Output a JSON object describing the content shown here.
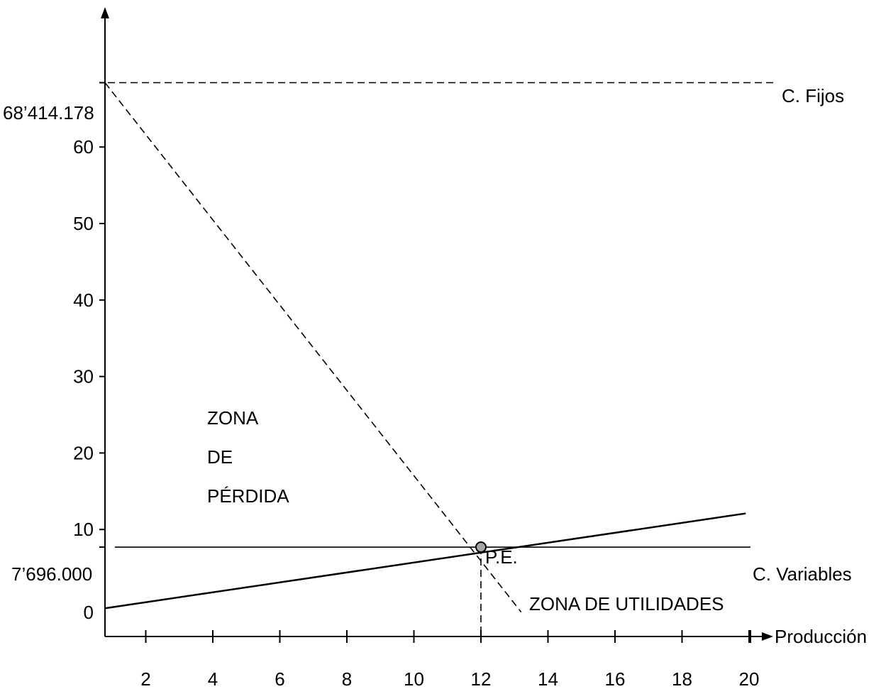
{
  "chart_data": {
    "type": "line",
    "xlabel": "Producción",
    "ylabel": "",
    "x_ticks": [
      "2",
      "4",
      "6",
      "8",
      "10",
      "12",
      "14",
      "16",
      "18",
      "20"
    ],
    "y_ticks": [
      "0",
      "10",
      "20",
      "30",
      "40",
      "50",
      "60"
    ],
    "special_y_labels": {
      "fixed": "68’414.178",
      "variable": "7’696.000"
    },
    "series": [
      {
        "name": "C. Fijos",
        "style": "dashed",
        "x": [
          0,
          20
        ],
        "y": [
          68.414,
          68.414
        ]
      },
      {
        "name": "C. Variables",
        "style": "solid",
        "x": [
          0,
          20
        ],
        "y": [
          7.696,
          7.696
        ]
      },
      {
        "style": "dashed",
        "x": [
          0,
          13.2
        ],
        "y": [
          68.414,
          -0.8
        ]
      },
      {
        "style": "solid",
        "x": [
          0,
          19.9
        ],
        "y": [
          -0.3,
          12.1
        ]
      }
    ],
    "breakeven": {
      "label": "P.E.",
      "x": 12,
      "y": 7.696
    },
    "annotations": {
      "loss_zone": [
        "ZONA",
        "DE",
        "PÉRDIDA"
      ],
      "profit_zone": "ZONA DE UTILIDADES"
    },
    "colors": {
      "line": "#000000",
      "point_fill": "#a6a6a6"
    }
  }
}
